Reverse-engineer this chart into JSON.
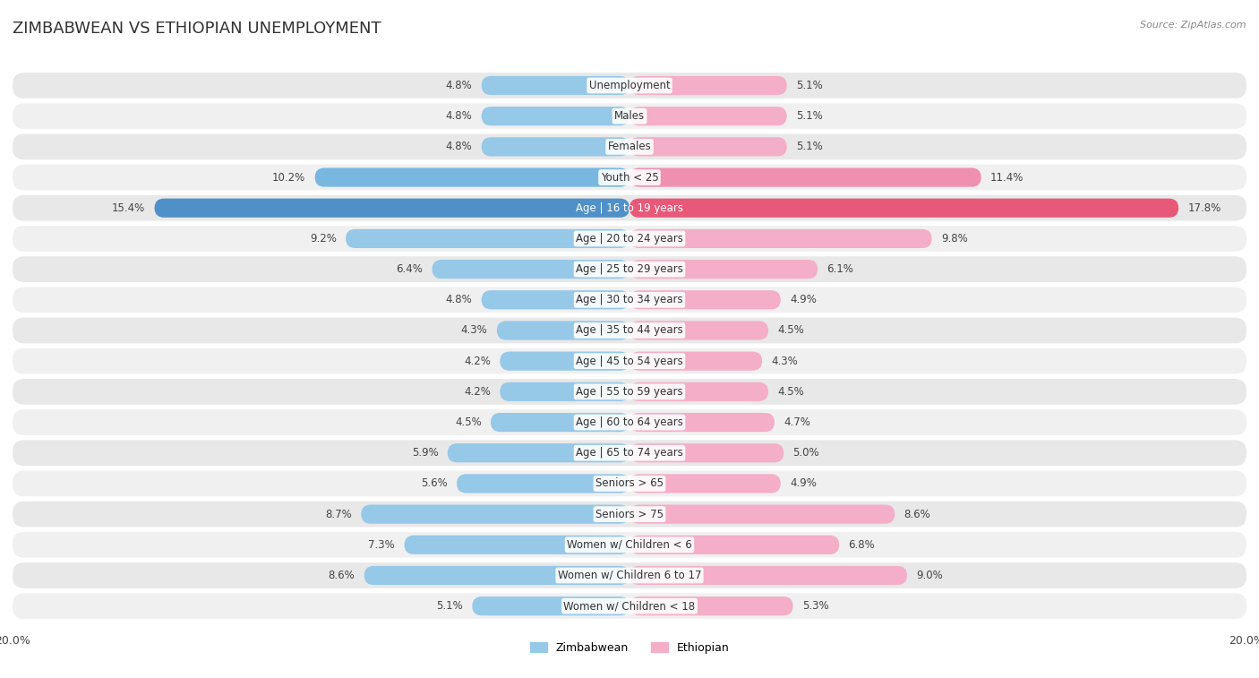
{
  "title": "ZIMBABWEAN VS ETHIOPIAN UNEMPLOYMENT",
  "source": "Source: ZipAtlas.com",
  "categories": [
    "Unemployment",
    "Males",
    "Females",
    "Youth < 25",
    "Age | 16 to 19 years",
    "Age | 20 to 24 years",
    "Age | 25 to 29 years",
    "Age | 30 to 34 years",
    "Age | 35 to 44 years",
    "Age | 45 to 54 years",
    "Age | 55 to 59 years",
    "Age | 60 to 64 years",
    "Age | 65 to 74 years",
    "Seniors > 65",
    "Seniors > 75",
    "Women w/ Children < 6",
    "Women w/ Children 6 to 17",
    "Women w/ Children < 18"
  ],
  "zimbabwean": [
    4.8,
    4.8,
    4.8,
    10.2,
    15.4,
    9.2,
    6.4,
    4.8,
    4.3,
    4.2,
    4.2,
    4.5,
    5.9,
    5.6,
    8.7,
    7.3,
    8.6,
    5.1
  ],
  "ethiopian": [
    5.1,
    5.1,
    5.1,
    11.4,
    17.8,
    9.8,
    6.1,
    4.9,
    4.5,
    4.3,
    4.5,
    4.7,
    5.0,
    4.9,
    8.6,
    6.8,
    9.0,
    5.3
  ],
  "zim_normal_color": "#96c8e8",
  "zim_medium_color": "#78b8e0",
  "zim_dark_color": "#5090c8",
  "eth_normal_color": "#f4aec8",
  "eth_medium_color": "#f090b0",
  "eth_dark_color": "#e85878",
  "row_bg_color": "#e8e8e8",
  "row_bg_alt_color": "#f5f5f5",
  "max_val": 20.0,
  "legend_zimbabwean": "Zimbabwean",
  "legend_ethiopian": "Ethiopian",
  "highlight_rows": [
    4
  ],
  "medium_rows": [
    3
  ]
}
